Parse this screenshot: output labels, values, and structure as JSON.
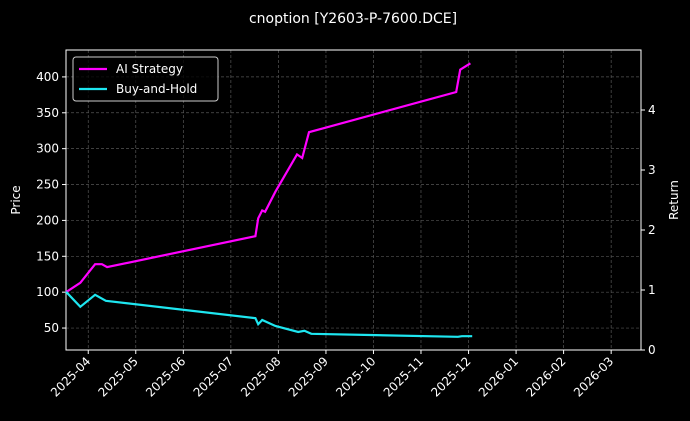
{
  "chart_data": {
    "type": "line",
    "title": "cnoption [Y2603-P-7600.DCE]",
    "ylabel": "Price",
    "y2label": "Return",
    "xlim": [
      2025.211,
      2026.219
    ],
    "xticks": [
      {
        "value": 2025.25,
        "label": "2025-04"
      },
      {
        "value": 2025.3333,
        "label": "2025-05"
      },
      {
        "value": 2025.4167,
        "label": "2025-06"
      },
      {
        "value": 2025.5,
        "label": "2025-07"
      },
      {
        "value": 2025.5833,
        "label": "2025-08"
      },
      {
        "value": 2025.6667,
        "label": "2025-09"
      },
      {
        "value": 2025.75,
        "label": "2025-10"
      },
      {
        "value": 2025.8333,
        "label": "2025-11"
      },
      {
        "value": 2025.9167,
        "label": "2025-12"
      },
      {
        "value": 2026.0,
        "label": "2026-01"
      },
      {
        "value": 2026.0833,
        "label": "2026-02"
      },
      {
        "value": 2026.1667,
        "label": "2026-03"
      }
    ],
    "ylim": [
      19.4,
      437.5
    ],
    "yticks": [
      50,
      100,
      150,
      200,
      250,
      300,
      350,
      400
    ],
    "y2lim": [
      0,
      5.0
    ],
    "y2ticks": [
      0,
      1,
      2,
      3,
      4
    ],
    "grid": true,
    "legend": "upper left",
    "series": [
      {
        "name": "AI Strategy",
        "color": "#ff00ff",
        "axis": "y",
        "x": [
          2025.211,
          2025.236,
          2025.262,
          2025.274,
          2025.283,
          2025.543,
          2025.548,
          2025.555,
          2025.56,
          2025.578,
          2025.616,
          2025.625,
          2025.637,
          2025.895,
          2025.902,
          2025.92
        ],
        "values": [
          100,
          113,
          139,
          139,
          135,
          178,
          203,
          214,
          212,
          240,
          292,
          287,
          323,
          379,
          410,
          419
        ]
      },
      {
        "name": "Buy-and-Hold",
        "color": "#1ee6f0",
        "axis": "y2",
        "x": [
          2025.211,
          2025.236,
          2025.262,
          2025.281,
          2025.543,
          2025.548,
          2025.555,
          2025.578,
          2025.618,
          2025.629,
          2025.641,
          2025.898,
          2025.905,
          2025.923
        ],
        "values": [
          0.97,
          0.72,
          0.92,
          0.82,
          0.53,
          0.43,
          0.5,
          0.4,
          0.3,
          0.32,
          0.27,
          0.22,
          0.23,
          0.23
        ]
      }
    ]
  }
}
